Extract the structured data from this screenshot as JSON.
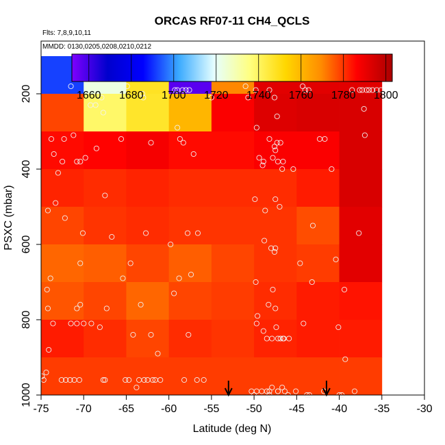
{
  "chart_data": {
    "type": "heatmap",
    "title": "ORCAS RF07-11 CH4_QCLS",
    "subtitle_flights": "Flts: 7,8,9,10,11",
    "subtitle_dates": "MMDD: 0130,0205,0208,0210,0212",
    "xlabel": "Latitude (deg N)",
    "ylabel": "PSXC (mbar)",
    "xlim": [
      -75,
      -30
    ],
    "ylim": [
      1000,
      60
    ],
    "x_ticks": [
      "-75",
      "-70",
      "-65",
      "-60",
      "-55",
      "-50",
      "-45",
      "-40",
      "-35",
      "-30"
    ],
    "y_ticks": [
      "200",
      "400",
      "600",
      "800",
      "1000"
    ],
    "colorbar": {
      "range": [
        1652,
        1803
      ],
      "ticks": [
        "1660",
        "1680",
        "1700",
        "1720",
        "1740",
        "1760",
        "1780",
        "1800"
      ],
      "colors": [
        "#7f00ff",
        "#0000cd",
        "#0000ff",
        "#3aaaff",
        "#e6ffff",
        "#ffff80",
        "#ffd700",
        "#ff8c00",
        "#ff0000",
        "#aa0000"
      ]
    },
    "lat_bins": [
      -75,
      -70,
      -65,
      -60,
      -55,
      -50,
      -45,
      -40,
      -35
    ],
    "p_bins": [
      100,
      200,
      300,
      400,
      500,
      600,
      700,
      800,
      900,
      1000
    ],
    "cells": [
      [
        1692,
        1723,
        1748,
        1657,
        1770,
        1792,
        1792,
        1792
      ],
      [
        1778,
        1739,
        1747,
        1760,
        1787,
        1793,
        1794,
        1794
      ],
      [
        1785,
        1786,
        1788,
        1785,
        1785,
        1787,
        1787,
        1794
      ],
      [
        1782,
        1781,
        1782,
        1781,
        1781,
        1781,
        1783,
        1794
      ],
      [
        1778,
        1780,
        1781,
        1780,
        1780,
        1780,
        1777,
        1792
      ],
      [
        1774,
        1775,
        1778,
        1775,
        1778,
        1780,
        1779,
        1792
      ],
      [
        1776,
        1778,
        1774,
        1778,
        1779,
        1781,
        1783,
        1784
      ],
      [
        1783,
        1781,
        1778,
        1781,
        1780,
        1782,
        1783,
        1783
      ],
      [
        1779,
        1779,
        1779,
        1779,
        1779,
        1779,
        1779,
        1779
      ]
    ],
    "points": [
      [
        -71.5,
        180
      ],
      [
        -70.8,
        380
      ],
      [
        -73.8,
        320
      ],
      [
        -73.5,
        360
      ],
      [
        -72.5,
        380
      ],
      [
        -72.3,
        320
      ],
      [
        -72.2,
        530
      ],
      [
        -74.2,
        510
      ],
      [
        -73.3,
        490
      ],
      [
        -71.2,
        310
      ],
      [
        -73,
        410
      ],
      [
        -70.4,
        380
      ],
      [
        -69.8,
        370
      ],
      [
        -68.5,
        345
      ],
      [
        -69.2,
        230
      ],
      [
        -68.6,
        230
      ],
      [
        -67.9,
        210
      ],
      [
        -67.7,
        250
      ],
      [
        -67.5,
        470
      ],
      [
        -66.7,
        580
      ],
      [
        -65.6,
        320
      ],
      [
        -70.1,
        570
      ],
      [
        -70.4,
        650
      ],
      [
        -67.3,
        770
      ],
      [
        -70.4,
        760
      ],
      [
        -70.8,
        770
      ],
      [
        -71.5,
        810
      ],
      [
        -70.8,
        810
      ],
      [
        -70,
        810
      ],
      [
        -69.1,
        810
      ],
      [
        -68.1,
        820
      ],
      [
        -64.9,
        180
      ],
      [
        -64.5,
        650
      ],
      [
        -65.4,
        690
      ],
      [
        -63.1,
        200
      ],
      [
        -63,
        210
      ],
      [
        -62.7,
        570
      ],
      [
        -63.3,
        760
      ],
      [
        -62.1,
        330
      ],
      [
        -62.1,
        840
      ],
      [
        -64.2,
        840
      ],
      [
        -61.3,
        890
      ],
      [
        -59.3,
        190
      ],
      [
        -59,
        190
      ],
      [
        -58.4,
        190
      ],
      [
        -58,
        190
      ],
      [
        -57.6,
        190
      ],
      [
        -59,
        290
      ],
      [
        -58.7,
        320
      ],
      [
        -58.3,
        330
      ],
      [
        -57.1,
        360
      ],
      [
        -57.8,
        570
      ],
      [
        -56.6,
        570
      ],
      [
        -59.8,
        600
      ],
      [
        -59.4,
        730
      ],
      [
        -58.8,
        690
      ],
      [
        -57.4,
        680
      ],
      [
        -57.7,
        840
      ],
      [
        -58.2,
        960
      ],
      [
        -61,
        960
      ],
      [
        -61.6,
        960
      ],
      [
        -62.9,
        960
      ],
      [
        -63.5,
        960
      ],
      [
        -63.8,
        980
      ],
      [
        -64.7,
        960
      ],
      [
        -65.1,
        960
      ],
      [
        -55,
        210
      ],
      [
        -51,
        180
      ],
      [
        -50.7,
        210
      ],
      [
        -49.8,
        190
      ],
      [
        -48.2,
        190
      ],
      [
        -47.6,
        210
      ],
      [
        -47.3,
        260
      ],
      [
        -49.7,
        290
      ],
      [
        -48.2,
        320
      ],
      [
        -47.6,
        340
      ],
      [
        -47.3,
        330
      ],
      [
        -47.5,
        350
      ],
      [
        -46.9,
        330
      ],
      [
        -47.8,
        370
      ],
      [
        -49.4,
        370
      ],
      [
        -48.9,
        380
      ],
      [
        -46.6,
        380
      ],
      [
        -45.4,
        400
      ],
      [
        -46.7,
        400
      ],
      [
        -47.2,
        380
      ],
      [
        -49,
        390
      ],
      [
        -49.9,
        480
      ],
      [
        -48.7,
        510
      ],
      [
        -47.5,
        480
      ],
      [
        -47,
        500
      ],
      [
        -48.8,
        590
      ],
      [
        -48,
        610
      ],
      [
        -47.6,
        620
      ],
      [
        -47.5,
        610
      ],
      [
        -49.8,
        700
      ],
      [
        -47.8,
        720
      ],
      [
        -48.3,
        760
      ],
      [
        -49.6,
        790
      ],
      [
        -48.9,
        830
      ],
      [
        -49.7,
        810
      ],
      [
        -47.5,
        770
      ],
      [
        -47.4,
        820
      ],
      [
        -48.5,
        850
      ],
      [
        -47.9,
        850
      ],
      [
        -47.2,
        850
      ],
      [
        -46.9,
        850
      ],
      [
        -46.6,
        850
      ],
      [
        -46.5,
        850
      ],
      [
        -44.3,
        180
      ],
      [
        -44,
        190
      ],
      [
        -43.6,
        190
      ],
      [
        -42.3,
        320
      ],
      [
        -41.7,
        320
      ],
      [
        -40.9,
        400
      ],
      [
        -43.1,
        550
      ],
      [
        -44.6,
        650
      ],
      [
        -43.2,
        700
      ],
      [
        -40.4,
        640
      ],
      [
        -39.4,
        720
      ],
      [
        -40.1,
        820
      ],
      [
        -39.3,
        905
      ],
      [
        -37.7,
        570
      ],
      [
        -37,
        310
      ],
      [
        -37.3,
        190
      ],
      [
        -37.6,
        190
      ],
      [
        -36.5,
        190
      ],
      [
        -36.1,
        190
      ],
      [
        -35.6,
        190
      ],
      [
        -35.1,
        190
      ],
      [
        -37.1,
        240
      ],
      [
        -38.5,
        190
      ],
      [
        -36.8,
        190
      ],
      [
        -44.2,
        810
      ],
      [
        -45.9,
        850
      ],
      [
        -48.5,
        990
      ],
      [
        -48.2,
        1000
      ],
      [
        -47.2,
        990
      ],
      [
        -46.7,
        980
      ],
      [
        -46,
        1000
      ],
      [
        -46.4,
        990
      ],
      [
        -45.1,
        990
      ],
      [
        -43.8,
        1000
      ],
      [
        -43.5,
        1000
      ],
      [
        -41.8,
        990
      ],
      [
        -40,
        1000
      ],
      [
        -39.7,
        1000
      ],
      [
        -38.2,
        990
      ],
      [
        -50.3,
        990
      ],
      [
        -49.7,
        990
      ],
      [
        -49.1,
        990
      ],
      [
        -48.2,
        990
      ],
      [
        -47.2,
        990
      ],
      [
        -47.9,
        980
      ],
      [
        -50,
        1000
      ],
      [
        -74.7,
        960
      ],
      [
        -74.9,
        950
      ],
      [
        -72.6,
        960
      ],
      [
        -72.1,
        960
      ],
      [
        -71.6,
        960
      ],
      [
        -71.1,
        960
      ],
      [
        -70.5,
        960
      ],
      [
        -67.7,
        960
      ],
      [
        -67.5,
        960
      ],
      [
        -62.5,
        960
      ],
      [
        -61.9,
        960
      ],
      [
        -56.7,
        960
      ],
      [
        -55.9,
        960
      ],
      [
        -74.1,
        880
      ],
      [
        -74.4,
        940
      ],
      [
        -73.6,
        810
      ],
      [
        -74.2,
        770
      ],
      [
        -73.9,
        690
      ],
      [
        -74.3,
        720
      ]
    ],
    "arrows_lat": [
      -53,
      -41.5
    ]
  }
}
